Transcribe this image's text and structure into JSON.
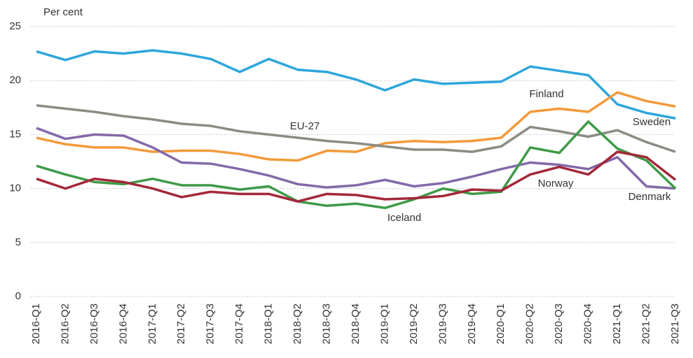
{
  "chart_data": {
    "type": "line",
    "y_label": "Per cent",
    "categories": [
      "2016-Q1",
      "2016-Q2",
      "2016-Q3",
      "2016-Q4",
      "2017-Q1",
      "2017-Q2",
      "2017-Q3",
      "2017-Q4",
      "2018-Q1",
      "2018-Q2",
      "2018-Q3",
      "2018-Q4",
      "2019-Q1",
      "2019-Q2",
      "2019-Q3",
      "2019-Q4",
      "2020-Q1",
      "2020-Q2",
      "2020-Q3",
      "2020-Q4",
      "2021-Q1",
      "2021-Q2",
      "2021-Q3"
    ],
    "series": [
      {
        "name": "Sweden",
        "color": "#2ea6dc",
        "values": [
          22.7,
          21.9,
          22.7,
          22.5,
          22.8,
          22.5,
          22.0,
          20.8,
          22.0,
          21.0,
          20.8,
          20.1,
          19.1,
          20.1,
          19.7,
          19.8,
          19.9,
          21.3,
          20.9,
          20.5,
          17.8,
          17.0,
          16.5
        ]
      },
      {
        "name": "Finland",
        "color": "#f39a3a",
        "values": [
          14.7,
          14.1,
          13.8,
          13.8,
          13.4,
          13.5,
          13.5,
          13.2,
          12.7,
          12.6,
          13.5,
          13.4,
          14.2,
          14.4,
          14.3,
          14.4,
          14.7,
          17.1,
          17.4,
          17.1,
          18.9,
          18.1,
          17.6
        ]
      },
      {
        "name": "EU-27",
        "color": "#8c8c84",
        "values": [
          17.7,
          17.4,
          17.1,
          16.7,
          16.4,
          16.0,
          15.8,
          15.3,
          15.0,
          14.7,
          14.4,
          14.2,
          13.9,
          13.6,
          13.6,
          13.4,
          13.9,
          15.7,
          15.3,
          14.8,
          15.4,
          14.3,
          13.4
        ]
      },
      {
        "name": "Denmark",
        "color": "#8469a8",
        "values": [
          15.6,
          14.6,
          15.0,
          14.9,
          13.8,
          12.4,
          12.3,
          11.8,
          11.2,
          10.4,
          10.1,
          10.3,
          10.8,
          10.2,
          10.5,
          11.1,
          11.8,
          12.4,
          12.2,
          11.8,
          12.9,
          10.2,
          10.0
        ]
      },
      {
        "name": "Iceland",
        "color": "#3f9a48",
        "values": [
          12.1,
          11.3,
          10.6,
          10.4,
          10.9,
          10.3,
          10.3,
          9.9,
          10.2,
          8.8,
          8.4,
          8.6,
          8.2,
          9.0,
          10.0,
          9.5,
          9.7,
          13.8,
          13.3,
          16.2,
          13.7,
          12.6,
          10.0
        ]
      },
      {
        "name": "Norway",
        "color": "#a3283a",
        "values": [
          10.9,
          10.0,
          10.9,
          10.6,
          10.0,
          9.2,
          9.7,
          9.5,
          9.5,
          8.8,
          9.5,
          9.4,
          9.0,
          9.1,
          9.3,
          9.9,
          9.8,
          11.3,
          12.0,
          11.3,
          13.4,
          12.9,
          10.8
        ]
      }
    ],
    "ylim": [
      0,
      25
    ],
    "yticks": [
      0,
      5,
      10,
      15,
      20,
      25
    ],
    "grid": true
  }
}
